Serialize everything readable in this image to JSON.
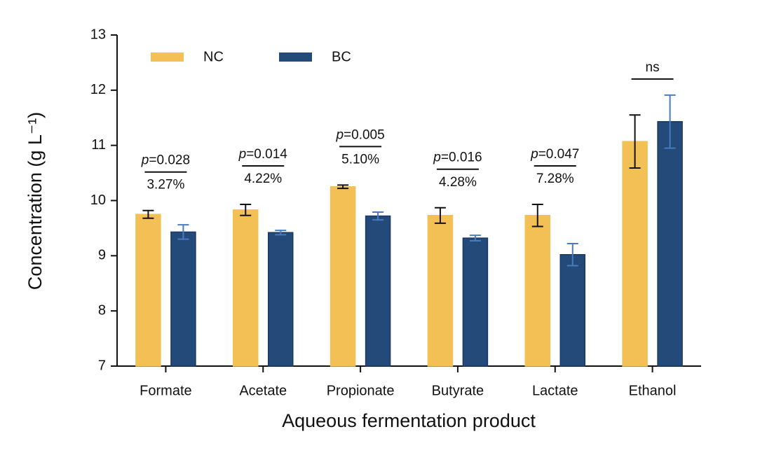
{
  "chart_data": {
    "type": "bar",
    "xlabel": "Aqueous fermentation product",
    "ylabel": "Concentration (g L⁻¹)",
    "categories": [
      "Formate",
      "Acetate",
      "Propionate",
      "Butyrate",
      "Lactate",
      "Ethanol"
    ],
    "series": [
      {
        "name": "NC",
        "color": "#f2c054",
        "error_color": "#111111",
        "values": [
          9.75,
          9.83,
          10.25,
          9.73,
          9.73,
          11.07
        ],
        "errors": [
          0.07,
          0.1,
          0.03,
          0.14,
          0.2,
          0.48
        ]
      },
      {
        "name": "BC",
        "color": "#234a78",
        "error_color": "#4a7bbf",
        "values": [
          9.43,
          9.42,
          9.72,
          9.32,
          9.02,
          11.43
        ],
        "errors": [
          0.13,
          0.04,
          0.07,
          0.05,
          0.2,
          0.48
        ]
      }
    ],
    "annotations": [
      {
        "text": "p=0.028",
        "change": "3.27%"
      },
      {
        "text": "p=0.014",
        "change": "4.22%"
      },
      {
        "text": "p=0.005",
        "change": "5.10%"
      },
      {
        "text": "p=0.016",
        "change": "4.28%"
      },
      {
        "text": "p=0.047",
        "change": "7.28%"
      },
      {
        "text": "ns"
      }
    ],
    "ylim": [
      7,
      13
    ],
    "yticks": [
      7,
      8,
      9,
      10,
      11,
      12,
      13
    ],
    "legend": "upper left"
  }
}
